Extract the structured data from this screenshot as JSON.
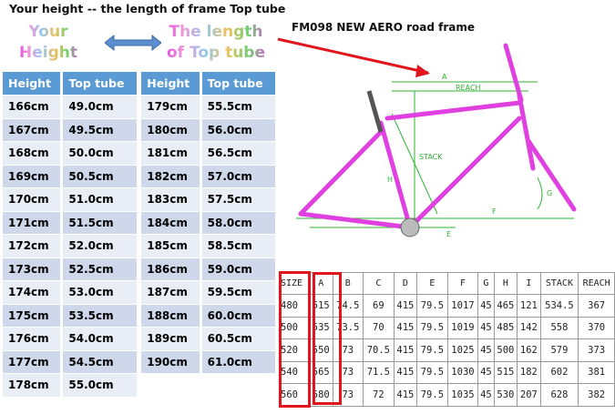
{
  "title": "Your height -- the length of  frame Top tube",
  "your_height": "Your Height",
  "the_length": "The length of Top tube",
  "model": "FM098  NEW AERO road frame",
  "size_table": {
    "headers": [
      "Height",
      "Top tube",
      "Height",
      "Top tube"
    ],
    "rows": [
      [
        "166cm",
        "49.0cm",
        "179cm",
        "55.5cm"
      ],
      [
        "167cm",
        "49.5cm",
        "180cm",
        "56.0cm"
      ],
      [
        "168cm",
        "50.0cm",
        "181cm",
        "56.5cm"
      ],
      [
        "169cm",
        "50.5cm",
        "182cm",
        "57.0cm"
      ],
      [
        "170cm",
        "51.0cm",
        "183cm",
        "57.5cm"
      ],
      [
        "171cm",
        "51.5cm",
        "184cm",
        "58.0cm"
      ],
      [
        "172cm",
        "52.0cm",
        "185cm",
        "58.5cm"
      ],
      [
        "173cm",
        "52.5cm",
        "186cm",
        "59.0cm"
      ],
      [
        "174cm",
        "53.0cm",
        "187cm",
        "59.5cm"
      ],
      [
        "175cm",
        "53.5cm",
        "188cm",
        "60.0cm"
      ],
      [
        "176cm",
        "54.0cm",
        "189cm",
        "60.5cm"
      ],
      [
        "177cm",
        "54.5cm",
        "190cm",
        "61.0cm"
      ],
      [
        "178cm",
        "55.0cm",
        "",
        ""
      ]
    ]
  },
  "geometry_table": {
    "headers": [
      "SIZE",
      "A",
      "B",
      "C",
      "D",
      "E",
      "F",
      "G",
      "H",
      "I",
      "STACK",
      "REACH"
    ],
    "rows": [
      [
        "480",
        "515",
        "74.5",
        "69",
        "415",
        "79.5",
        "1017",
        "45",
        "465",
        "121",
        "534.5",
        "367"
      ],
      [
        "500",
        "535",
        "73.5",
        "70",
        "415",
        "79.5",
        "1019",
        "45",
        "485",
        "142",
        "558",
        "370"
      ],
      [
        "520",
        "550",
        "73",
        "70.5",
        "415",
        "79.5",
        "1025",
        "45",
        "500",
        "162",
        "579",
        "373"
      ],
      [
        "540",
        "565",
        "73",
        "71.5",
        "415",
        "79.5",
        "1030",
        "45",
        "515",
        "182",
        "602",
        "381"
      ],
      [
        "560",
        "580",
        "73",
        "72",
        "415",
        "79.5",
        "1035",
        "45",
        "530",
        "207",
        "628",
        "382"
      ]
    ]
  },
  "diagram_labels": {
    "a": "A",
    "reach": "REACH",
    "stack": "STACK",
    "h": "H",
    "f": "F",
    "g": "G",
    "e": "E"
  },
  "colors": {
    "header": "#5b9bd5",
    "highlight": "#e0161c",
    "frame": "#e040e0",
    "dimension": "#2fb32f"
  }
}
